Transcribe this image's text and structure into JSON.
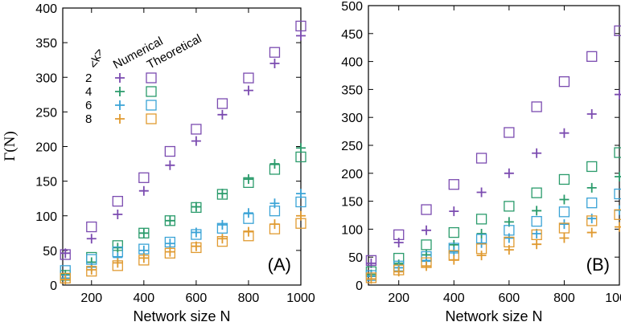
{
  "figure": {
    "ylabel": "Γ(N)"
  },
  "colors": {
    "k2": "#7b4bb0",
    "k4": "#2a9b6b",
    "k6": "#3aa3d6",
    "k8": "#e09a30"
  },
  "chart_data": [
    {
      "type": "scatter",
      "panel_label": "(A)",
      "xlabel": "Network size N",
      "ylabel": "Γ(N)",
      "xlim": [
        90,
        1000
      ],
      "ylim": [
        0,
        400
      ],
      "xticks": [
        200,
        400,
        600,
        800,
        1000
      ],
      "yticks": [
        0,
        50,
        100,
        150,
        200,
        250,
        300,
        350,
        400
      ],
      "grid": false,
      "legend": {
        "placement": "top-left",
        "header_k": "<k>",
        "header_numerical": "Numerical",
        "header_theoretical": "Theoretical",
        "entries": [
          "2",
          "4",
          "6",
          "8"
        ]
      },
      "x": [
        100,
        200,
        300,
        400,
        500,
        600,
        700,
        800,
        900,
        1000
      ],
      "series": [
        {
          "k": "2",
          "color_key": "k2",
          "kind": "numerical",
          "marker": "plus",
          "values": [
            46,
            67,
            102,
            136,
            173,
            208,
            246,
            281,
            320,
            360
          ]
        },
        {
          "k": "2",
          "color_key": "k2",
          "kind": "theoretical",
          "marker": "square",
          "values": [
            44,
            84,
            121,
            155,
            193,
            225,
            262,
            299,
            336,
            374
          ]
        },
        {
          "k": "4",
          "color_key": "k4",
          "kind": "numerical",
          "marker": "plus",
          "values": [
            15,
            33,
            54,
            75,
            93,
            113,
            132,
            153,
            175,
            198
          ]
        },
        {
          "k": "4",
          "color_key": "k4",
          "kind": "theoretical",
          "marker": "square",
          "values": [
            14,
            40,
            57,
            75,
            93,
            112,
            131,
            148,
            167,
            185
          ]
        },
        {
          "k": "6",
          "color_key": "k6",
          "kind": "numerical",
          "marker": "plus",
          "values": [
            10,
            26,
            40,
            50,
            60,
            76,
            87,
            104,
            118,
            132
          ]
        },
        {
          "k": "6",
          "color_key": "k6",
          "kind": "theoretical",
          "marker": "square",
          "values": [
            21,
            37,
            48,
            52,
            62,
            73,
            82,
            96,
            107,
            120
          ]
        },
        {
          "k": "8",
          "color_key": "k8",
          "kind": "numerical",
          "marker": "plus",
          "values": [
            8,
            22,
            32,
            39,
            48,
            56,
            67,
            77,
            88,
            100
          ]
        },
        {
          "k": "8",
          "color_key": "k8",
          "kind": "theoretical",
          "marker": "square",
          "values": [
            10,
            20,
            28,
            36,
            46,
            54,
            63,
            71,
            81,
            89
          ]
        }
      ]
    },
    {
      "type": "scatter",
      "panel_label": "(B)",
      "xlabel": "Network size N",
      "ylabel": "",
      "xlim": [
        90,
        1000
      ],
      "ylim": [
        0,
        500
      ],
      "xticks": [
        200,
        400,
        600,
        800,
        1000
      ],
      "yticks": [
        0,
        50,
        100,
        150,
        200,
        250,
        300,
        350,
        400,
        450,
        500
      ],
      "grid": false,
      "x": [
        100,
        200,
        300,
        400,
        500,
        600,
        700,
        800,
        900,
        1000
      ],
      "series": [
        {
          "k": "2",
          "color_key": "k2",
          "kind": "numerical",
          "marker": "plus",
          "values": [
            39,
            76,
            98,
            132,
            166,
            200,
            236,
            272,
            306,
            341
          ]
        },
        {
          "k": "2",
          "color_key": "k2",
          "kind": "theoretical",
          "marker": "square",
          "values": [
            44,
            90,
            135,
            180,
            227,
            273,
            319,
            364,
            409,
            455
          ]
        },
        {
          "k": "4",
          "color_key": "k4",
          "kind": "numerical",
          "marker": "plus",
          "values": [
            19,
            37,
            54,
            72,
            92,
            113,
            133,
            153,
            174,
            194
          ]
        },
        {
          "k": "4",
          "color_key": "k4",
          "kind": "theoretical",
          "marker": "square",
          "values": [
            24,
            48,
            72,
            94,
            118,
            141,
            165,
            189,
            212,
            237
          ]
        },
        {
          "k": "6",
          "color_key": "k6",
          "kind": "numerical",
          "marker": "plus",
          "values": [
            16,
            31,
            44,
            60,
            75,
            84,
            92,
            109,
            119,
            134
          ]
        },
        {
          "k": "6",
          "color_key": "k6",
          "kind": "theoretical",
          "marker": "square",
          "values": [
            17,
            34,
            51,
            66,
            82,
            98,
            114,
            131,
            147,
            163
          ]
        },
        {
          "k": "8",
          "color_key": "k8",
          "kind": "numerical",
          "marker": "plus",
          "values": [
            11,
            24,
            34,
            45,
            53,
            63,
            73,
            84,
            94,
            104
          ]
        },
        {
          "k": "8",
          "color_key": "k8",
          "kind": "theoretical",
          "marker": "square",
          "values": [
            13,
            27,
            40,
            53,
            65,
            77,
            90,
            102,
            115,
            126
          ]
        }
      ]
    }
  ]
}
